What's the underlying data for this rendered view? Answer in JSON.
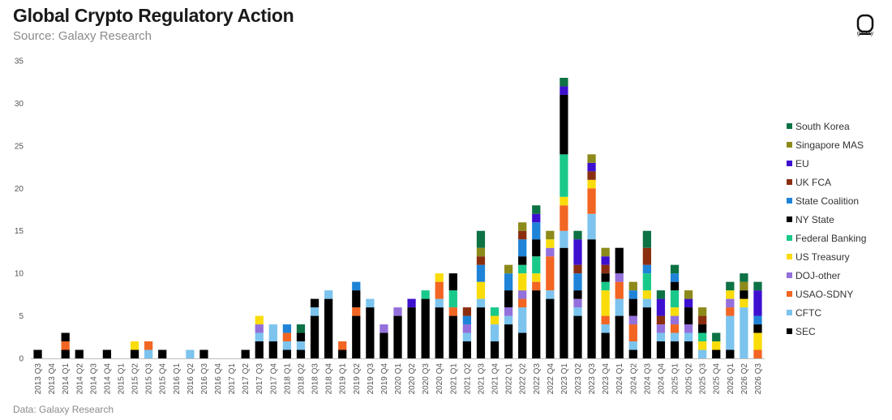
{
  "header": {
    "title": "Global Crypto Regulatory Action",
    "subtitle": "Source: Galaxy Research",
    "logo_text": "galaxy"
  },
  "footer": {
    "text": "Data: Galaxy Research"
  },
  "chart_data": {
    "type": "bar",
    "stacked": true,
    "ylim": [
      0,
      35
    ],
    "yticks": [
      0,
      5,
      10,
      15,
      20,
      25,
      30,
      35
    ],
    "grid": false,
    "legend_position": "right",
    "categories": [
      "2013 Q3",
      "2013 Q4",
      "2014 Q1",
      "2014 Q2",
      "2014 Q3",
      "2014 Q4",
      "2015 Q1",
      "2015 Q2",
      "2015 Q3",
      "2015 Q4",
      "2016 Q1",
      "2016 Q2",
      "2016 Q3",
      "2016 Q4",
      "2017 Q1",
      "2017 Q2",
      "2017 Q3",
      "2017 Q4",
      "2018 Q1",
      "2018 Q2",
      "2018 Q3",
      "2018 Q4",
      "2019 Q1",
      "2019 Q2",
      "2019 Q3",
      "2019 Q4",
      "2020 Q1",
      "2020 Q2",
      "2020 Q3",
      "2020 Q4",
      "2021 Q1",
      "2021 Q2",
      "2021 Q3",
      "2021 Q4",
      "2022 Q1",
      "2022 Q2",
      "2022 Q3",
      "2022 Q4",
      "2023 Q1",
      "2023 Q2",
      "2023 Q3",
      "2023 Q4",
      "2024 Q1",
      "2024 Q2",
      "2024 Q3",
      "2024 Q4",
      "2025 Q1",
      "2025 Q2",
      "2025 Q3",
      "2025 Q4",
      "2026 Q1",
      "2026 Q2",
      "2026 Q3"
    ],
    "series": [
      {
        "name": "SEC",
        "color": "#000000",
        "values": [
          1,
          0,
          1,
          1,
          0,
          1,
          0,
          1,
          0,
          1,
          0,
          0,
          1,
          0,
          0,
          1,
          2,
          2,
          1,
          1,
          5,
          7,
          1,
          5,
          6,
          3,
          5,
          6,
          7,
          6,
          5,
          2,
          6,
          2,
          4,
          3,
          8,
          7,
          13,
          5,
          14,
          3,
          5,
          1,
          6,
          2,
          2,
          2,
          0,
          1,
          1,
          0,
          0
        ]
      },
      {
        "name": "CFTC",
        "color": "#7cc4ee",
        "values": [
          0,
          0,
          0,
          0,
          0,
          0,
          0,
          0,
          1,
          0,
          0,
          1,
          0,
          0,
          0,
          0,
          1,
          2,
          1,
          1,
          1,
          1,
          0,
          0,
          1,
          0,
          0,
          0,
          0,
          1,
          0,
          1,
          1,
          2,
          1,
          3,
          0,
          1,
          2,
          1,
          3,
          1,
          2,
          1,
          1,
          1,
          1,
          1,
          1,
          0,
          4,
          6,
          0
        ]
      },
      {
        "name": "USAO-SDNY",
        "color": "#f26522",
        "values": [
          0,
          0,
          1,
          0,
          0,
          0,
          0,
          0,
          1,
          0,
          0,
          0,
          0,
          0,
          0,
          0,
          0,
          0,
          1,
          0,
          0,
          0,
          1,
          1,
          0,
          0,
          0,
          0,
          0,
          2,
          1,
          0,
          0,
          0,
          0,
          1,
          1,
          4,
          3,
          0,
          3,
          1,
          2,
          2,
          0,
          0,
          1,
          0,
          0,
          0,
          1,
          0,
          1
        ]
      },
      {
        "name": "DOJ-other",
        "color": "#9370db",
        "values": [
          0,
          0,
          0,
          0,
          0,
          0,
          0,
          0,
          0,
          0,
          0,
          0,
          0,
          0,
          0,
          0,
          1,
          0,
          0,
          0,
          0,
          0,
          0,
          0,
          0,
          1,
          1,
          0,
          0,
          0,
          0,
          1,
          0,
          0,
          1,
          1,
          0,
          1,
          0,
          1,
          0,
          0,
          1,
          1,
          0,
          1,
          1,
          1,
          0,
          0,
          1,
          0,
          0
        ]
      },
      {
        "name": "US Treasury",
        "color": "#fadc0a",
        "values": [
          0,
          0,
          0,
          0,
          0,
          0,
          0,
          1,
          0,
          0,
          0,
          0,
          0,
          0,
          0,
          0,
          1,
          0,
          0,
          0,
          0,
          0,
          0,
          0,
          0,
          0,
          0,
          0,
          0,
          1,
          0,
          0,
          2,
          1,
          0,
          2,
          1,
          1,
          1,
          0,
          1,
          3,
          0,
          0,
          1,
          0,
          1,
          0,
          1,
          1,
          1,
          1,
          2
        ]
      },
      {
        "name": "Federal Banking",
        "color": "#19c98a",
        "values": [
          0,
          0,
          0,
          0,
          0,
          0,
          0,
          0,
          0,
          0,
          0,
          0,
          0,
          0,
          0,
          0,
          0,
          0,
          0,
          0,
          0,
          0,
          0,
          0,
          0,
          0,
          0,
          0,
          1,
          0,
          2,
          0,
          0,
          1,
          0,
          1,
          2,
          0,
          5,
          0,
          0,
          1,
          0,
          0,
          2,
          0,
          2,
          0,
          1,
          0,
          0,
          0,
          0
        ]
      },
      {
        "name": "NY State",
        "color": "#000000",
        "values": [
          0,
          0,
          1,
          0,
          0,
          0,
          0,
          0,
          0,
          0,
          0,
          0,
          0,
          0,
          0,
          0,
          0,
          0,
          0,
          1,
          1,
          0,
          0,
          2,
          0,
          0,
          0,
          0,
          0,
          0,
          2,
          0,
          0,
          0,
          2,
          1,
          2,
          0,
          7,
          1,
          0,
          1,
          3,
          2,
          0,
          0,
          1,
          2,
          1,
          0,
          0,
          1,
          1
        ]
      },
      {
        "name": "State Coalition",
        "color": "#1f83d8",
        "values": [
          0,
          0,
          0,
          0,
          0,
          0,
          0,
          0,
          0,
          0,
          0,
          0,
          0,
          0,
          0,
          0,
          0,
          0,
          1,
          0,
          0,
          0,
          0,
          1,
          0,
          0,
          0,
          0,
          0,
          0,
          0,
          1,
          2,
          0,
          2,
          2,
          2,
          0,
          0,
          2,
          0,
          0,
          0,
          1,
          1,
          0,
          1,
          0,
          0,
          0,
          0,
          0,
          1
        ]
      },
      {
        "name": "UK FCA",
        "color": "#8b2e10",
        "values": [
          0,
          0,
          0,
          0,
          0,
          0,
          0,
          0,
          0,
          0,
          0,
          0,
          0,
          0,
          0,
          0,
          0,
          0,
          0,
          0,
          0,
          0,
          0,
          0,
          0,
          0,
          0,
          0,
          0,
          0,
          0,
          1,
          1,
          0,
          0,
          1,
          0,
          0,
          0,
          1,
          1,
          1,
          0,
          0,
          2,
          1,
          0,
          0,
          1,
          0,
          0,
          0,
          0
        ]
      },
      {
        "name": "EU",
        "color": "#3d10d0",
        "values": [
          0,
          0,
          0,
          0,
          0,
          0,
          0,
          0,
          0,
          0,
          0,
          0,
          0,
          0,
          0,
          0,
          0,
          0,
          0,
          0,
          0,
          0,
          0,
          0,
          0,
          0,
          0,
          1,
          0,
          0,
          0,
          0,
          0,
          0,
          0,
          0,
          1,
          0,
          1,
          3,
          1,
          1,
          0,
          0,
          0,
          2,
          0,
          1,
          0,
          0,
          0,
          0,
          3
        ]
      },
      {
        "name": "Singapore MAS",
        "color": "#8c8a1a",
        "values": [
          0,
          0,
          0,
          0,
          0,
          0,
          0,
          0,
          0,
          0,
          0,
          0,
          0,
          0,
          0,
          0,
          0,
          0,
          0,
          0,
          0,
          0,
          0,
          0,
          0,
          0,
          0,
          0,
          0,
          0,
          0,
          0,
          1,
          0,
          1,
          1,
          0,
          1,
          0,
          0,
          1,
          1,
          0,
          1,
          0,
          0,
          0,
          1,
          1,
          0,
          0,
          1,
          0
        ]
      },
      {
        "name": "South Korea",
        "color": "#0d7244",
        "values": [
          0,
          0,
          0,
          0,
          0,
          0,
          0,
          0,
          0,
          0,
          0,
          0,
          0,
          0,
          0,
          0,
          0,
          0,
          0,
          1,
          0,
          0,
          0,
          0,
          0,
          0,
          0,
          0,
          0,
          0,
          0,
          0,
          2,
          0,
          0,
          0,
          1,
          0,
          1,
          1,
          0,
          0,
          0,
          0,
          2,
          1,
          1,
          0,
          0,
          1,
          1,
          1,
          1
        ]
      }
    ]
  }
}
